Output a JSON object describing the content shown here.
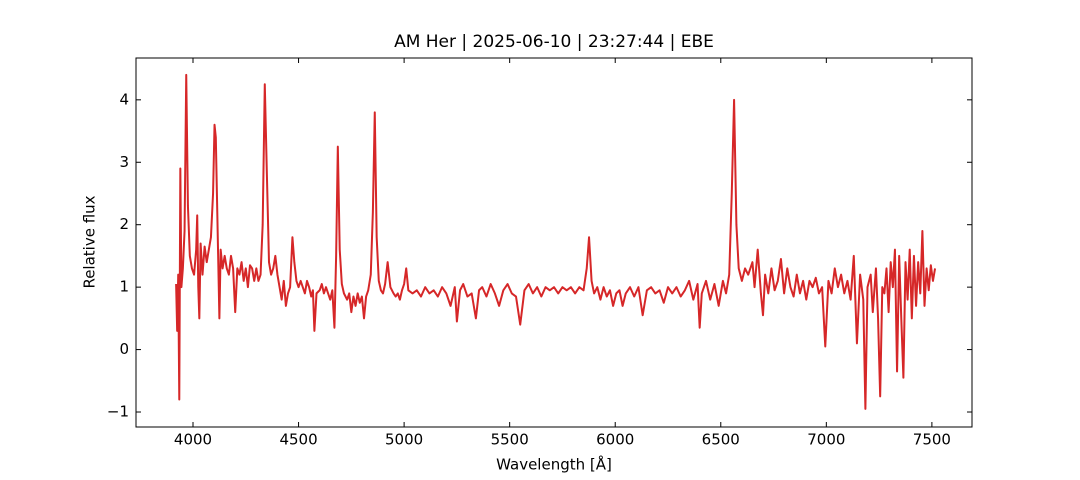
{
  "chart_data": {
    "type": "line",
    "title": "AM Her | 2025-06-10 | 23:27:44 | EBE",
    "xlabel": "Wavelength [Å]",
    "ylabel": "Relative flux",
    "color": "#d62728",
    "xlim": [
      3730,
      7690
    ],
    "ylim": [
      -1.24,
      4.67
    ],
    "xticks": [
      4000,
      4500,
      5000,
      5500,
      6000,
      6500,
      7000,
      7500
    ],
    "yticks": [
      {
        "value": -1,
        "label": "−1"
      },
      0,
      1,
      2,
      3,
      4
    ],
    "grid": false,
    "x": [
      3920,
      3925,
      3930,
      3935,
      3940,
      3945,
      3952,
      3960,
      3968,
      3976,
      3985,
      3995,
      4005,
      4015,
      4020,
      4025,
      4030,
      4036,
      4045,
      4055,
      4065,
      4075,
      4085,
      4095,
      4102,
      4108,
      4115,
      4125,
      4131,
      4140,
      4150,
      4160,
      4170,
      4180,
      4190,
      4200,
      4210,
      4220,
      4230,
      4240,
      4250,
      4260,
      4270,
      4280,
      4290,
      4300,
      4310,
      4320,
      4330,
      4340,
      4350,
      4360,
      4370,
      4380,
      4390,
      4400,
      4410,
      4420,
      4430,
      4440,
      4450,
      4460,
      4471,
      4480,
      4490,
      4500,
      4510,
      4520,
      4530,
      4540,
      4550,
      4560,
      4568,
      4575,
      4585,
      4600,
      4610,
      4620,
      4630,
      4640,
      4650,
      4660,
      4670,
      4678,
      4686,
      4695,
      4705,
      4715,
      4730,
      4740,
      4750,
      4760,
      4770,
      4780,
      4790,
      4800,
      4810,
      4820,
      4830,
      4842,
      4852,
      4861,
      4870,
      4880,
      4890,
      4900,
      4910,
      4922,
      4935,
      4950,
      4960,
      4970,
      4980,
      4990,
      5000,
      5010,
      5020,
      5040,
      5060,
      5080,
      5100,
      5120,
      5140,
      5160,
      5180,
      5200,
      5220,
      5240,
      5250,
      5265,
      5280,
      5300,
      5320,
      5340,
      5355,
      5370,
      5390,
      5410,
      5430,
      5450,
      5470,
      5490,
      5510,
      5530,
      5550,
      5570,
      5590,
      5610,
      5630,
      5650,
      5670,
      5690,
      5710,
      5730,
      5750,
      5770,
      5790,
      5810,
      5830,
      5850,
      5865,
      5876,
      5888,
      5900,
      5915,
      5930,
      5945,
      5960,
      5975,
      5990,
      6005,
      6020,
      6035,
      6050,
      6070,
      6090,
      6110,
      6130,
      6150,
      6170,
      6190,
      6210,
      6230,
      6250,
      6270,
      6290,
      6310,
      6330,
      6350,
      6370,
      6390,
      6400,
      6410,
      6430,
      6450,
      6470,
      6490,
      6510,
      6525,
      6540,
      6552,
      6563,
      6574,
      6585,
      6600,
      6615,
      6630,
      6650,
      6660,
      6675,
      6690,
      6700,
      6710,
      6725,
      6740,
      6755,
      6770,
      6785,
      6800,
      6815,
      6830,
      6845,
      6860,
      6875,
      6890,
      6905,
      6920,
      6935,
      6950,
      6965,
      6980,
      6995,
      7010,
      7025,
      7040,
      7055,
      7070,
      7085,
      7100,
      7115,
      7130,
      7145,
      7160,
      7175,
      7185,
      7195,
      7210,
      7220,
      7235,
      7245,
      7255,
      7265,
      7275,
      7285,
      7295,
      7305,
      7315,
      7325,
      7335,
      7345,
      7355,
      7365,
      7375,
      7385,
      7395,
      7405,
      7415,
      7425,
      7435,
      7445,
      7455,
      7465,
      7475,
      7485,
      7495,
      7505,
      7515
    ],
    "values": [
      1.05,
      0.3,
      1.2,
      -0.8,
      2.9,
      1.0,
      1.3,
      1.9,
      4.4,
      2.3,
      1.5,
      1.3,
      1.2,
      1.6,
      2.15,
      1.0,
      0.5,
      1.7,
      1.2,
      1.65,
      1.4,
      1.6,
      1.8,
      2.5,
      3.6,
      3.4,
      2.2,
      0.5,
      1.6,
      1.3,
      1.5,
      1.3,
      1.2,
      1.5,
      1.3,
      0.6,
      1.3,
      1.2,
      1.4,
      1.1,
      1.3,
      1.0,
      1.35,
      1.3,
      1.1,
      1.3,
      1.1,
      1.2,
      2.0,
      4.25,
      2.8,
      1.4,
      1.2,
      1.3,
      1.5,
      1.2,
      1.0,
      0.8,
      1.1,
      0.7,
      0.9,
      1.0,
      1.8,
      1.4,
      1.1,
      1.0,
      1.1,
      1.0,
      0.9,
      1.1,
      1.0,
      0.85,
      0.95,
      0.3,
      0.9,
      0.95,
      1.05,
      0.9,
      1.0,
      0.9,
      0.8,
      0.95,
      0.35,
      1.5,
      3.25,
      1.6,
      1.05,
      0.9,
      0.8,
      0.9,
      0.6,
      0.85,
      0.7,
      0.9,
      0.75,
      0.85,
      0.5,
      0.85,
      0.95,
      1.2,
      2.2,
      3.8,
      1.8,
      1.1,
      0.95,
      0.9,
      1.05,
      1.4,
      1.0,
      0.9,
      0.85,
      0.9,
      0.8,
      0.95,
      1.05,
      1.3,
      0.95,
      0.9,
      0.95,
      0.85,
      1.0,
      0.9,
      0.95,
      0.85,
      1.0,
      0.9,
      0.7,
      1.0,
      0.45,
      0.95,
      1.05,
      0.85,
      0.9,
      0.5,
      0.95,
      1.0,
      0.85,
      1.05,
      0.9,
      0.7,
      0.95,
      1.05,
      0.9,
      0.85,
      0.4,
      0.95,
      1.05,
      0.9,
      1.0,
      0.85,
      1.0,
      0.95,
      1.0,
      0.9,
      1.0,
      0.95,
      1.0,
      0.9,
      1.0,
      0.95,
      1.3,
      1.8,
      1.1,
      0.9,
      1.0,
      0.8,
      1.0,
      0.85,
      0.95,
      0.7,
      0.9,
      0.95,
      0.7,
      0.9,
      1.0,
      0.85,
      1.0,
      0.55,
      0.95,
      1.0,
      0.9,
      0.95,
      0.75,
      1.0,
      0.9,
      1.0,
      0.85,
      0.95,
      1.1,
      0.8,
      1.05,
      0.35,
      0.9,
      1.1,
      0.8,
      1.05,
      0.7,
      1.1,
      0.9,
      1.2,
      2.5,
      4.0,
      2.0,
      1.3,
      1.1,
      1.3,
      1.2,
      1.4,
      1.0,
      1.6,
      0.9,
      0.55,
      1.2,
      0.9,
      1.3,
      0.95,
      1.1,
      1.45,
      0.9,
      1.3,
      1.0,
      0.85,
      1.2,
      0.9,
      1.1,
      0.8,
      1.1,
      1.0,
      1.15,
      0.9,
      1.0,
      0.05,
      1.1,
      0.9,
      1.3,
      1.0,
      1.2,
      0.9,
      1.1,
      0.8,
      1.5,
      0.1,
      1.2,
      0.8,
      -0.95,
      1.0,
      1.2,
      0.6,
      1.3,
      0.5,
      -0.75,
      1.0,
      0.9,
      1.3,
      0.6,
      1.4,
      1.0,
      1.6,
      -0.35,
      1.5,
      0.5,
      -0.45,
      1.4,
      0.8,
      1.6,
      0.5,
      1.5,
      0.7,
      1.4,
      0.9,
      1.9,
      0.7,
      1.3,
      0.95,
      1.35,
      1.1,
      1.3
    ]
  }
}
